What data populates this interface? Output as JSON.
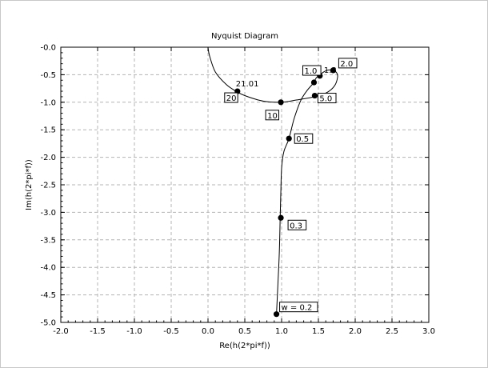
{
  "chart_data": {
    "type": "line",
    "title": "Nyquist Diagram",
    "xlabel": "Re(h(2*pi*f))",
    "ylabel": "Im(h(2*pi*f))",
    "xlim": [
      -2.0,
      3.0
    ],
    "ylim": [
      -5.0,
      0.0
    ],
    "x_ticks": [
      "-2.0",
      "-1.5",
      "-1.0",
      "-0.5",
      "0.0",
      "0.5",
      "1.0",
      "1.5",
      "2.0",
      "2.5",
      "3.0"
    ],
    "y_ticks": [
      "-0.0",
      "-0.5",
      "-1.0",
      "-1.5",
      "-2.0",
      "-2.5",
      "-3.0",
      "-3.5",
      "-4.0",
      "-4.5",
      "-5.0"
    ],
    "grid": true,
    "curve": {
      "x": [
        0.93,
        0.95,
        0.97,
        0.98,
        0.99,
        1.0,
        1.03,
        1.1,
        1.17,
        1.26,
        1.35,
        1.44,
        1.47,
        1.55,
        1.62,
        1.7,
        1.75,
        1.76,
        1.72,
        1.62,
        1.45,
        1.2,
        1.0,
        0.75,
        0.5,
        0.38,
        0.25,
        0.1,
        0.02,
        0.0
      ],
      "y": [
        -4.85,
        -4.3,
        -3.7,
        -3.1,
        -2.6,
        -2.2,
        -1.9,
        -1.66,
        -1.3,
        -0.97,
        -0.78,
        -0.64,
        -0.56,
        -0.47,
        -0.42,
        -0.42,
        -0.47,
        -0.55,
        -0.7,
        -0.82,
        -0.9,
        -0.96,
        -1.0,
        -0.98,
        -0.88,
        -0.8,
        -0.68,
        -0.45,
        -0.15,
        0.0
      ]
    },
    "points": [
      {
        "label": "w = 0.2",
        "x": 0.93,
        "y": -4.85
      },
      {
        "label": "0.3",
        "x": 0.99,
        "y": -3.1
      },
      {
        "label": "0.5",
        "x": 1.1,
        "y": -1.66
      },
      {
        "label": "1.0",
        "x": 1.44,
        "y": -0.64
      },
      {
        "label": "1.3",
        "x": 1.52,
        "y": -0.52
      },
      {
        "label": "2.0",
        "x": 1.7,
        "y": -0.42
      },
      {
        "label": "5.0",
        "x": 1.45,
        "y": -0.88
      },
      {
        "label": "10",
        "x": 0.99,
        "y": -1.0
      },
      {
        "label": "20",
        "x": 0.4,
        "y": -0.8
      },
      {
        "label": "21.01",
        "x": 0.4,
        "y": -0.8
      }
    ]
  }
}
